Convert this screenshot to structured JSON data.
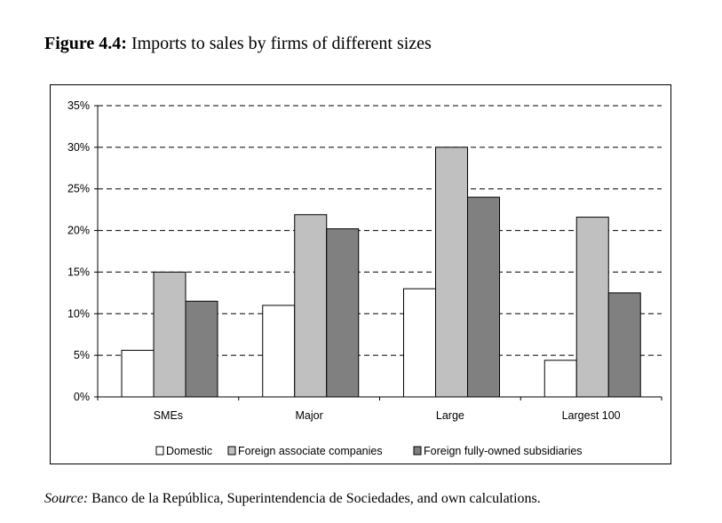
{
  "figure": {
    "label": "Figure 4.4:",
    "caption": "Imports to sales by firms of different sizes"
  },
  "source": {
    "label": "Source:",
    "text": "Banco de la República, Superintendencia de Sociedades, and own calculations."
  },
  "chart_data": {
    "type": "bar",
    "title": "Imports to sales by firms of different sizes",
    "categories": [
      "SMEs",
      "Major",
      "Large",
      "Largest 100"
    ],
    "series": [
      {
        "name": "Domestic",
        "color": "#ffffff",
        "values": [
          5.6,
          11.0,
          13.0,
          4.4
        ]
      },
      {
        "name": "Foreign associate companies",
        "color": "#c0c0c0",
        "values": [
          15.0,
          21.9,
          30.0,
          21.6
        ]
      },
      {
        "name": "Foreign fully-owned subsidiaries",
        "color": "#808080",
        "values": [
          11.5,
          20.2,
          24.0,
          12.5
        ]
      }
    ],
    "ylim": [
      0,
      35
    ],
    "yticks": [
      0,
      5,
      10,
      15,
      20,
      25,
      30,
      35
    ],
    "ytick_labels": [
      "0%",
      "5%",
      "10%",
      "15%",
      "20%",
      "25%",
      "30%",
      "35%"
    ],
    "xlabel": "",
    "ylabel": "",
    "grid": true,
    "legend": "bottom"
  }
}
